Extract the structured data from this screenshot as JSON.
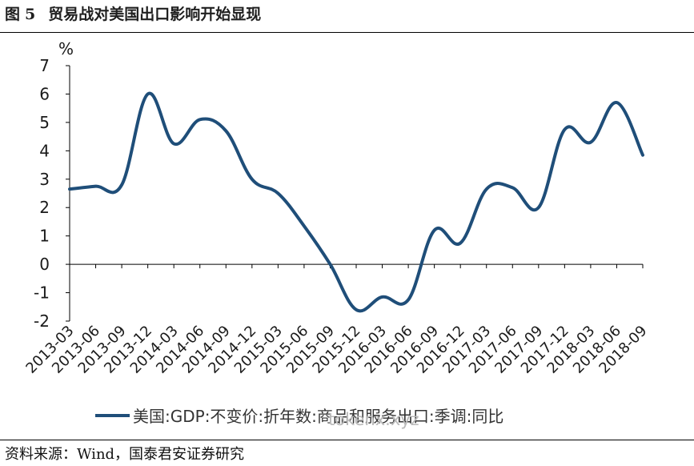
{
  "figure": {
    "label": "图",
    "number": "5",
    "title": "贸易战对美国出口影响开始显现"
  },
  "source_text": "资料来源：Wind，国泰君安证券研究",
  "watermark": "tokenx.xyz",
  "colors": {
    "series": "#1f4e79",
    "axis": "#000000",
    "text": "#1a1a1a"
  },
  "chart_data": {
    "type": "line",
    "ylabel": "%",
    "ylim": [
      -2,
      7
    ],
    "yticks": [
      -2,
      -1,
      0,
      1,
      2,
      3,
      4,
      5,
      6,
      7
    ],
    "grid": false,
    "legend_position": "bottom",
    "categories": [
      "2013-03",
      "2013-06",
      "2013-09",
      "2013-12",
      "2014-03",
      "2014-06",
      "2014-09",
      "2014-12",
      "2015-03",
      "2015-06",
      "2015-09",
      "2015-12",
      "2016-03",
      "2016-06",
      "2016-09",
      "2016-12",
      "2017-03",
      "2017-06",
      "2017-09",
      "2017-12",
      "2018-03",
      "2018-06",
      "2018-09"
    ],
    "series": [
      {
        "name": "美国:GDP:不变价:折年数:商品和服务出口:季调:同比",
        "color": "#1f4e79",
        "values": [
          2.65,
          2.75,
          2.8,
          6.0,
          4.25,
          5.1,
          4.7,
          3.0,
          2.5,
          1.35,
          0.0,
          -1.6,
          -1.15,
          -1.25,
          1.2,
          0.75,
          2.65,
          2.7,
          2.0,
          4.75,
          4.3,
          5.7,
          3.85
        ]
      }
    ]
  }
}
